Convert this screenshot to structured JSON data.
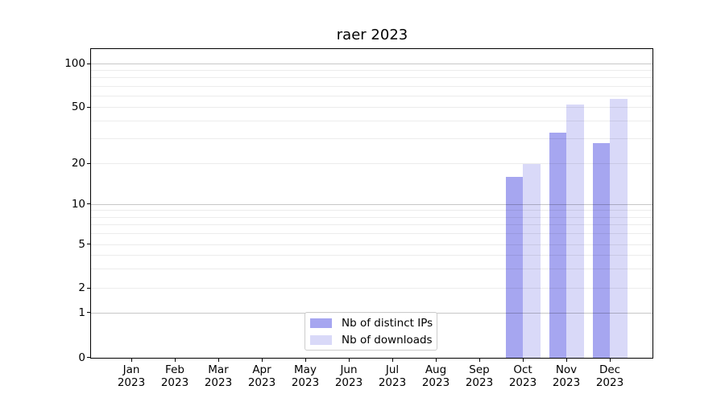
{
  "figure": {
    "title": "raer 2023",
    "background": "#ffffff"
  },
  "legend": {
    "items": [
      {
        "label": "Nb of distinct IPs",
        "color": "#a6a6f0"
      },
      {
        "label": "Nb of downloads",
        "color": "#d9d9f8"
      }
    ]
  },
  "chart_data": {
    "type": "bar",
    "title": "raer 2023",
    "categories": [
      "Jan 2023",
      "Feb 2023",
      "Mar 2023",
      "Apr 2023",
      "May 2023",
      "Jun 2023",
      "Jul 2023",
      "Aug 2023",
      "Sep 2023",
      "Oct 2023",
      "Nov 2023",
      "Dec 2023"
    ],
    "series": [
      {
        "name": "Nb of distinct IPs",
        "color": "#a6a6f0",
        "values": [
          null,
          null,
          null,
          null,
          null,
          null,
          null,
          null,
          null,
          16,
          33,
          28
        ]
      },
      {
        "name": "Nb of downloads",
        "color": "#d9d9f8",
        "values": [
          null,
          null,
          null,
          null,
          null,
          null,
          null,
          null,
          null,
          20,
          52,
          57
        ]
      }
    ],
    "xlabel": "",
    "ylabel": "",
    "yscale": "symlog",
    "ylim": [
      0,
      126
    ],
    "yticks": [
      0,
      1,
      2,
      5,
      10,
      20,
      50,
      100
    ],
    "major_grid_values": [
      1,
      10,
      100
    ],
    "minor_grid_values": [
      2,
      3,
      4,
      5,
      6,
      7,
      8,
      9,
      20,
      30,
      40,
      50,
      60,
      70,
      80,
      90
    ],
    "grid": true,
    "legend_position": "lower center"
  }
}
